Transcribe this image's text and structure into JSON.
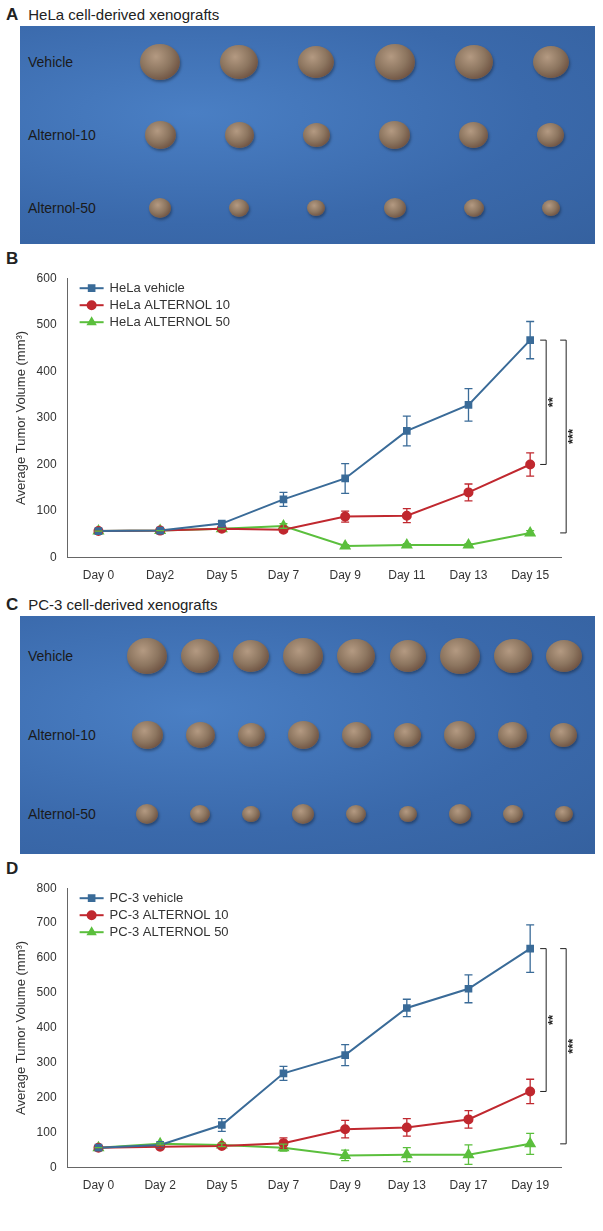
{
  "panels": [
    {
      "letter": "A",
      "title": "HeLa cell-derived xenografts",
      "rows": [
        {
          "label": "Vehicle",
          "tumors": 6
        },
        {
          "label": "Alternol-10",
          "tumors": 6
        },
        {
          "label": "Alternol-50",
          "tumors": 6
        }
      ]
    },
    {
      "letter": "C",
      "title": "PC-3 cell-derived xenografts",
      "rows": [
        {
          "label": "Vehicle",
          "tumors": 9
        },
        {
          "label": "Alternol-10",
          "tumors": 9
        },
        {
          "label": "Alternol-50",
          "tumors": 9
        }
      ]
    }
  ],
  "chart_data": [
    {
      "letter": "B",
      "type": "line",
      "y_label": "Average Tumor Volume (mm³)",
      "categories": [
        "Day 0",
        "Day2",
        "Day 5",
        "Day 7",
        "Day 9",
        "Day 11",
        "Day 13",
        "Day 15"
      ],
      "series": [
        {
          "name": "HeLa vehicle",
          "color": "#3a6b98",
          "marker": "square",
          "values": [
            57,
            58,
            73,
            125,
            170,
            272,
            328,
            467
          ],
          "errors": [
            0,
            0,
            5,
            15,
            32,
            32,
            35,
            40
          ]
        },
        {
          "name": "HeLa ALTERNOL 10",
          "color": "#c0282f",
          "marker": "circle",
          "values": [
            57,
            58,
            62,
            60,
            88,
            90,
            140,
            200
          ],
          "errors": [
            0,
            0,
            0,
            5,
            12,
            15,
            18,
            25
          ]
        },
        {
          "name": "HeLa ALTERNOL 50",
          "color": "#5bbf3d",
          "marker": "triangle",
          "values": [
            57,
            58,
            62,
            68,
            25,
            27,
            27,
            53
          ],
          "errors": [
            0,
            0,
            0,
            5,
            3,
            3,
            3,
            5
          ]
        }
      ],
      "ylim": [
        0,
        600
      ],
      "yticks": [
        0,
        100,
        200,
        300,
        400,
        500,
        600
      ],
      "grid": false,
      "legend": "upper left",
      "annotations": [
        {
          "text": "**",
          "from": "HeLa vehicle",
          "to": "HeLa ALTERNOL 10"
        },
        {
          "text": "***",
          "from": "HeLa vehicle",
          "to": "HeLa ALTERNOL 50"
        }
      ]
    },
    {
      "letter": "D",
      "type": "line",
      "y_label": "Average Tumor Volume (mm³)",
      "categories": [
        "Day 0",
        "Day 2",
        "Day 5",
        "Day 7",
        "Day 9",
        "Day 13",
        "Day 17",
        "Day 19"
      ],
      "series": [
        {
          "name": "PC-3 vehicle",
          "color": "#3a6b98",
          "marker": "square",
          "values": [
            57,
            65,
            122,
            270,
            322,
            457,
            512,
            627
          ],
          "errors": [
            0,
            5,
            18,
            20,
            30,
            25,
            40,
            68
          ]
        },
        {
          "name": "PC-3 ALTERNOL 10",
          "color": "#c0282f",
          "marker": "circle",
          "values": [
            57,
            60,
            62,
            70,
            110,
            115,
            138,
            218
          ],
          "errors": [
            0,
            3,
            3,
            15,
            25,
            25,
            25,
            35
          ]
        },
        {
          "name": "PC-3 ALTERNOL 50",
          "color": "#5bbf3d",
          "marker": "triangle",
          "values": [
            57,
            68,
            65,
            57,
            35,
            37,
            37,
            68
          ],
          "errors": [
            0,
            3,
            5,
            10,
            15,
            20,
            28,
            30
          ]
        }
      ],
      "ylim": [
        0,
        800
      ],
      "yticks": [
        0,
        100,
        200,
        300,
        400,
        500,
        600,
        700,
        800
      ],
      "grid": false,
      "legend": "upper left",
      "annotations": [
        {
          "text": "**",
          "from": "PC-3 vehicle",
          "to": "PC-3 ALTERNOL 10"
        },
        {
          "text": "***",
          "from": "PC-3 vehicle",
          "to": "PC-3 ALTERNOL 50"
        }
      ]
    }
  ]
}
